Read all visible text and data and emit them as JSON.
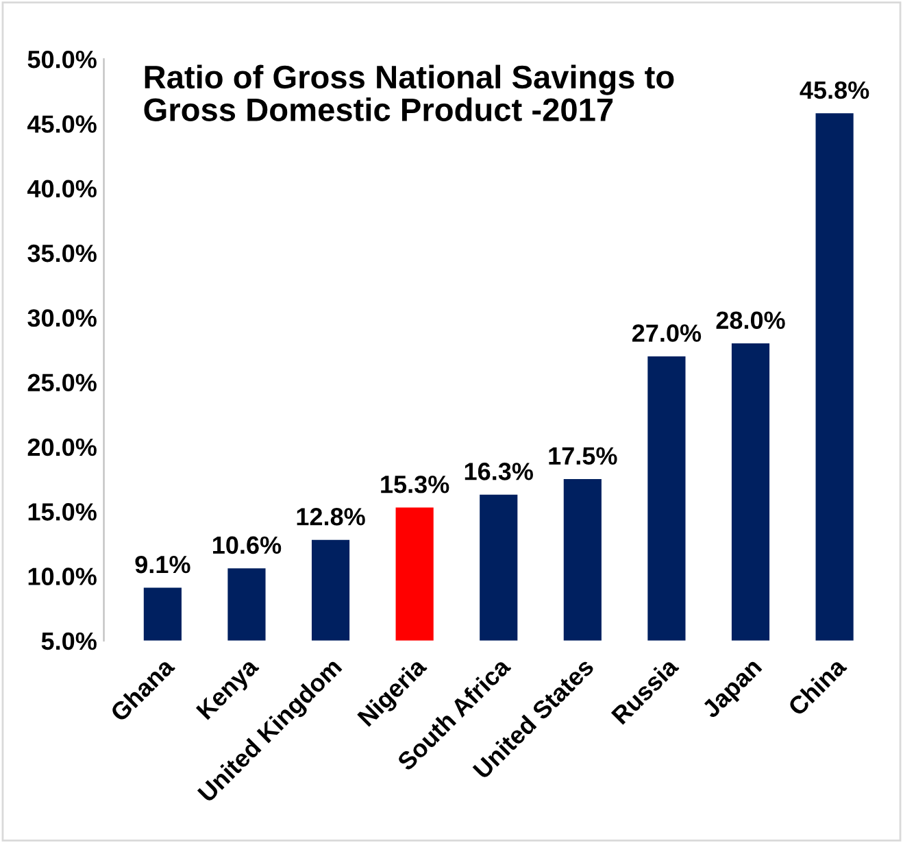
{
  "chart_data": {
    "type": "bar",
    "title": "Ratio of Gross National Savings to\nGross Domestic Product -2017",
    "categories": [
      "Ghana",
      "Kenya",
      "United Kingdom",
      "Nigeria",
      "South Africa",
      "United States",
      "Russia",
      "Japan",
      "China"
    ],
    "values": [
      9.1,
      10.6,
      12.8,
      15.3,
      16.3,
      17.5,
      27.0,
      28.0,
      45.8
    ],
    "colors": [
      "#002060",
      "#002060",
      "#002060",
      "#ff0000",
      "#002060",
      "#002060",
      "#002060",
      "#002060",
      "#002060"
    ],
    "value_labels": [
      "9.1%",
      "10.6%",
      "12.8%",
      "15.3%",
      "16.3%",
      "17.5%",
      "27.0%",
      "28.0%",
      "45.8%"
    ],
    "ylim": [
      5,
      50
    ],
    "yticks": [
      {
        "value": 5,
        "label": "5.0%"
      },
      {
        "value": 10,
        "label": "10.0%"
      },
      {
        "value": 15,
        "label": "15.0%"
      },
      {
        "value": 20,
        "label": "20.0%"
      },
      {
        "value": 25,
        "label": "25.0%"
      },
      {
        "value": 30,
        "label": "30.0%"
      },
      {
        "value": 35,
        "label": "35.0%"
      },
      {
        "value": 40,
        "label": "40.0%"
      },
      {
        "value": 45,
        "label": "45.0%"
      },
      {
        "value": 50,
        "label": "50.0%"
      }
    ],
    "grid": false,
    "legend": false
  }
}
